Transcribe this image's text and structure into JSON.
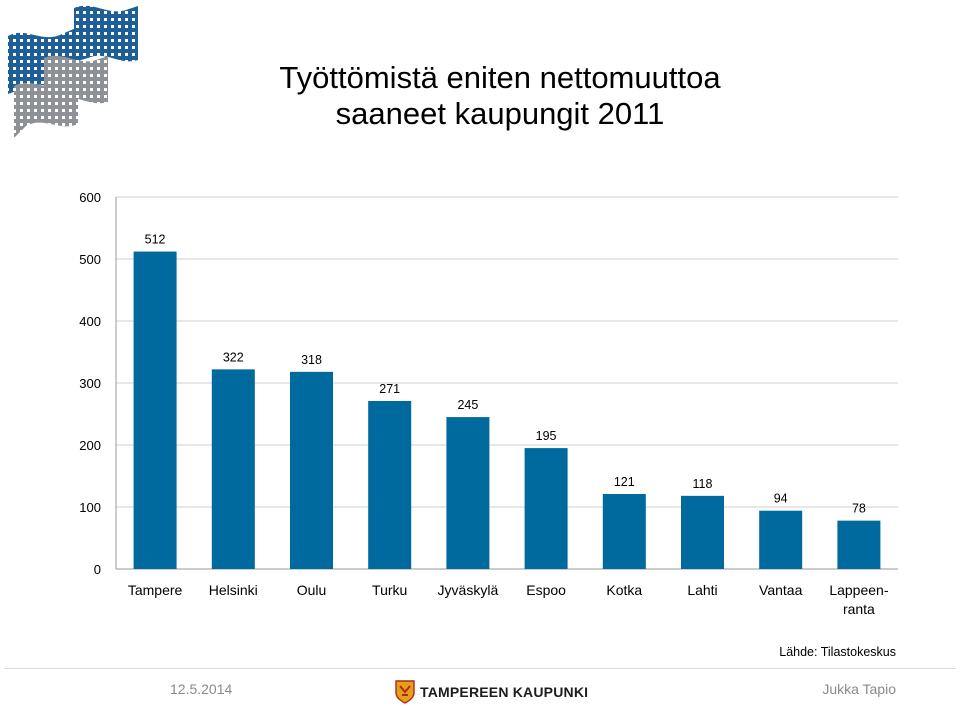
{
  "title_line1": "Työttömistä eniten nettomuuttoa",
  "title_line2": "saaneet kaupungit 2011",
  "colors": {
    "bar": "#00699e",
    "grid": "#cfcfcf"
  },
  "chart_data": {
    "type": "bar",
    "title": "Työttömistä eniten nettomuuttoa saaneet kaupungit 2011",
    "categories": [
      "Tampere",
      "Helsinki",
      "Oulu",
      "Turku",
      "Jyväskylä",
      "Espoo",
      "Kotka",
      "Lahti",
      "Vantaa",
      "Lappeen-ranta"
    ],
    "category_lines": [
      [
        "Tampere"
      ],
      [
        "Helsinki"
      ],
      [
        "Oulu"
      ],
      [
        "Turku"
      ],
      [
        "Jyväskylä"
      ],
      [
        "Espoo"
      ],
      [
        "Kotka"
      ],
      [
        "Lahti"
      ],
      [
        "Vantaa"
      ],
      [
        "Lappeen-",
        "ranta"
      ]
    ],
    "values": [
      512,
      322,
      318,
      271,
      245,
      195,
      121,
      118,
      94,
      78
    ],
    "ylim": [
      0,
      600
    ],
    "yticks": [
      0,
      100,
      200,
      300,
      400,
      500,
      600
    ],
    "grid": true,
    "xlabel": "",
    "ylabel": ""
  },
  "source": "Lähde: Tilastokeskus",
  "footer": {
    "date": "12.5.2014",
    "city": "TAMPEREEN KAUPUNKI",
    "author": "Jukka Tapio"
  }
}
